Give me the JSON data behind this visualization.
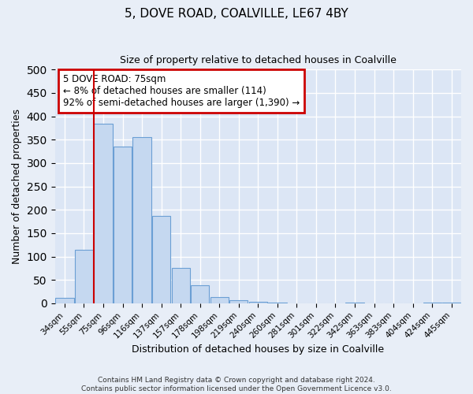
{
  "title": "5, DOVE ROAD, COALVILLE, LE67 4BY",
  "subtitle": "Size of property relative to detached houses in Coalville",
  "xlabel": "Distribution of detached houses by size in Coalville",
  "ylabel": "Number of detached properties",
  "bar_color": "#c5d8f0",
  "bar_edge_color": "#6b9fd4",
  "categories": [
    "34sqm",
    "55sqm",
    "75sqm",
    "96sqm",
    "116sqm",
    "137sqm",
    "157sqm",
    "178sqm",
    "198sqm",
    "219sqm",
    "240sqm",
    "260sqm",
    "281sqm",
    "301sqm",
    "322sqm",
    "342sqm",
    "363sqm",
    "383sqm",
    "404sqm",
    "424sqm",
    "445sqm"
  ],
  "values": [
    12,
    115,
    385,
    335,
    355,
    187,
    76,
    38,
    13,
    7,
    3,
    2,
    0,
    0,
    0,
    2,
    0,
    0,
    0,
    2,
    2
  ],
  "ylim": [
    0,
    500
  ],
  "yticks": [
    0,
    50,
    100,
    150,
    200,
    250,
    300,
    350,
    400,
    450,
    500
  ],
  "vline_idx": 2,
  "vline_color": "#cc0000",
  "box_text_line1": "5 DOVE ROAD: 75sqm",
  "box_text_line2": "← 8% of detached houses are smaller (114)",
  "box_text_line3": "92% of semi-detached houses are larger (1,390) →",
  "box_color": "#cc0000",
  "box_facecolor": "white",
  "footnote1": "Contains HM Land Registry data © Crown copyright and database right 2024.",
  "footnote2": "Contains public sector information licensed under the Open Government Licence v3.0.",
  "bg_color": "#e8eef7",
  "plot_bg_color": "#dce6f5"
}
